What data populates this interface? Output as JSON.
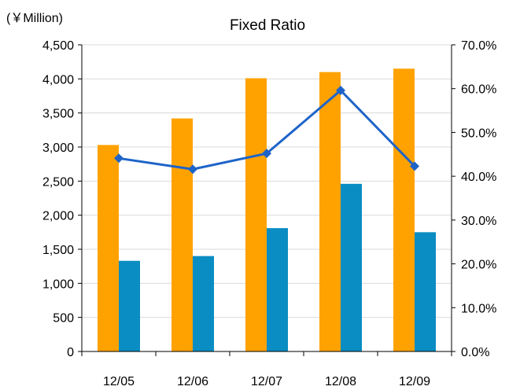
{
  "chart_data": {
    "type": "bar",
    "title": "Fixed Ratio",
    "unit_label": "(￥Million)",
    "categories": [
      "12/05",
      "12/06",
      "12/07",
      "12/08",
      "12/09"
    ],
    "series": [
      {
        "kind": "bar",
        "axis": "left",
        "color": "#FFA200",
        "values": [
          3030,
          3420,
          4010,
          4100,
          4150
        ]
      },
      {
        "kind": "bar",
        "axis": "left",
        "color": "#0A8DC2",
        "values": [
          1330,
          1400,
          1810,
          2460,
          1750
        ]
      },
      {
        "kind": "line",
        "axis": "right",
        "color": "#1E64C8",
        "values": [
          44.1,
          41.6,
          45.2,
          59.6,
          42.3
        ]
      }
    ],
    "y_left": {
      "min": 0,
      "max": 4500,
      "ticks": [
        "0",
        "500",
        "1,000",
        "1,500",
        "2,000",
        "2,500",
        "3,000",
        "3,500",
        "4,000",
        "4,500"
      ]
    },
    "y_right": {
      "min": 0,
      "max": 70,
      "ticks": [
        "0.0%",
        "10.0%",
        "20.0%",
        "30.0%",
        "40.0%",
        "50.0%",
        "60.0%",
        "70.0%"
      ]
    },
    "grid": true,
    "legend": "none"
  }
}
